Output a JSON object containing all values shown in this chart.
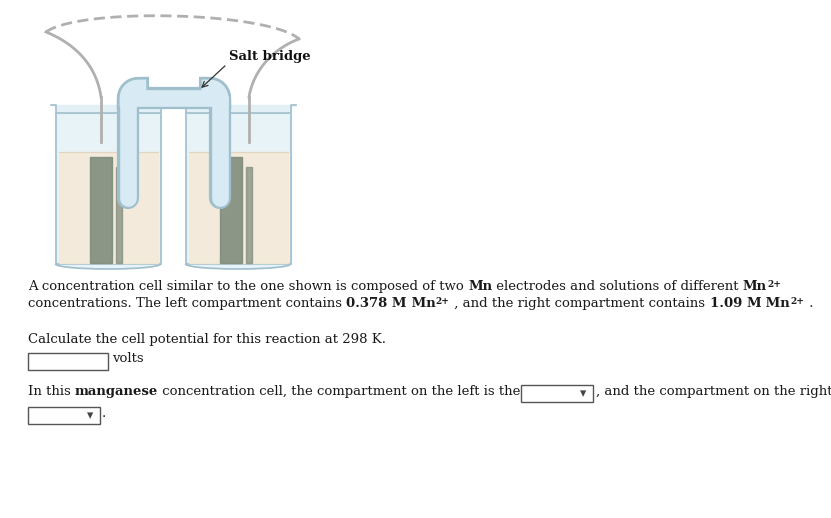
{
  "bg_color": "#ffffff",
  "salt_bridge_label": "Salt bridge",
  "desc_line1_a": "A concentration cell similar to the one shown is composed of two ",
  "desc_line1_b": "Mn",
  "desc_line1_c": " electrodes and solutions of different ",
  "desc_line1_d": "Mn",
  "desc_line1_sup": "2+",
  "desc_line2_a": "concentrations. The left compartment contains ",
  "desc_line2_b": "0.378 M",
  "desc_line2_c": " Mn",
  "desc_line2_sup": "2+",
  "desc_line2_d": " , and the right compartment contains ",
  "desc_line2_e": "1.09 M",
  "desc_line2_f": " Mn",
  "desc_line2_sup2": "2+",
  "desc_line2_g": " .",
  "calc_text": "Calculate the cell potential for this reaction at 298 K.",
  "volts_text": "volts",
  "last_a": "In this ",
  "last_b": "manganese",
  "last_c": " concentration cell, the compartment on the left is the",
  "last_d": ", and the compartment on the right is the",
  "beaker_liquid_color": "#f5ead8",
  "beaker_glass_color": "#cce0ec",
  "beaker_glass_edge": "#a0bfcc",
  "beaker_glass_inner": "#ddeef5",
  "electrode_color": "#7a8878",
  "salt_bridge_inner": "#d8eaf4",
  "salt_bridge_edge": "#a0bfcc",
  "wire_color": "#b0b0b0",
  "text_color": "#1a1a1a",
  "font_size": 9.5,
  "font_family": "serif"
}
